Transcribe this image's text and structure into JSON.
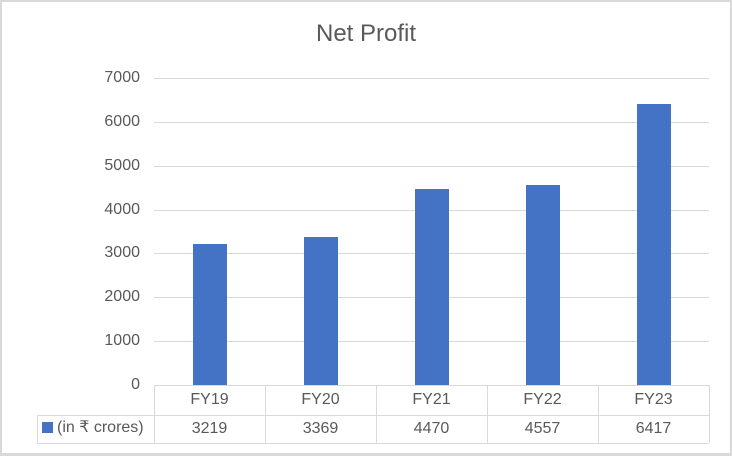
{
  "chart_data": {
    "type": "bar",
    "title": "Net Profit",
    "categories": [
      "FY19",
      "FY20",
      "FY21",
      "FY22",
      "FY23"
    ],
    "series": [
      {
        "name": "(in ₹ crores)",
        "values": [
          3219,
          3369,
          4470,
          4557,
          6417
        ],
        "color": "#4472c4"
      }
    ],
    "xlabel": "",
    "ylabel": "",
    "ylim": [
      0,
      7000
    ],
    "yticks": [
      0,
      1000,
      2000,
      3000,
      4000,
      5000,
      6000,
      7000
    ],
    "grid": true,
    "legend_position": "data-table",
    "data_table": true
  },
  "labels": {
    "title": "Net Profit",
    "yticks": [
      "7000",
      "6000",
      "5000",
      "4000",
      "3000",
      "2000",
      "1000",
      "0"
    ],
    "categories": [
      "FY19",
      "FY20",
      "FY21",
      "FY22",
      "FY23"
    ],
    "values": [
      "3219",
      "3369",
      "4470",
      "4557",
      "6417"
    ],
    "series_name": "(in ₹ crores)"
  }
}
